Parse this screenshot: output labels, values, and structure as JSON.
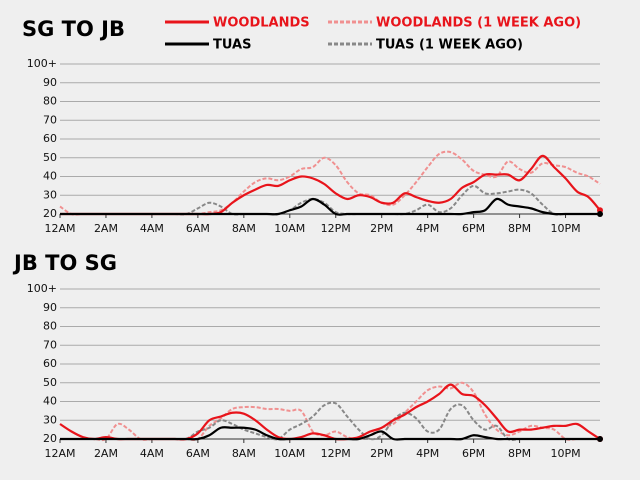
{
  "chart_data": [
    {
      "type": "line",
      "title": "SG TO JB",
      "x": [
        0,
        0.5,
        1,
        1.5,
        2,
        2.5,
        3,
        3.5,
        4,
        4.5,
        5,
        5.5,
        6,
        6.5,
        7,
        7.5,
        8,
        8.5,
        9,
        9.5,
        10,
        10.5,
        11,
        11.5,
        12,
        12.5,
        13,
        13.5,
        14,
        14.5,
        15,
        15.5,
        16,
        16.5,
        17,
        17.5,
        18,
        18.5,
        19,
        19.5,
        20,
        20.5,
        21,
        21.5,
        22,
        22.5,
        23,
        23.5
      ],
      "series": [
        {
          "name": "WOODLANDS",
          "color": "#e8141b",
          "dashed": false,
          "values": [
            20,
            20,
            20,
            20,
            20,
            20,
            20,
            20,
            20,
            20,
            20,
            20,
            20,
            20,
            21,
            26,
            30,
            33,
            35.5,
            35,
            38,
            40,
            39,
            36,
            31,
            28,
            30,
            29,
            26,
            26,
            31,
            29,
            27,
            26,
            28,
            34,
            37,
            41,
            41,
            41,
            38,
            44,
            51,
            45,
            39,
            32,
            29,
            22
          ]
        },
        {
          "name": "WOODLANDS (1 WEEK AGO)",
          "color": "#f09090",
          "dashed": true,
          "values": [
            24,
            20,
            20,
            20,
            20,
            20,
            20,
            20,
            20,
            20,
            20,
            20,
            20,
            21,
            22,
            26,
            32,
            37,
            39,
            38,
            40,
            44,
            45,
            50,
            46,
            37,
            31,
            30,
            26,
            25,
            30,
            37,
            45,
            52,
            53,
            49,
            43,
            41,
            40,
            48,
            44,
            42,
            47,
            46,
            45,
            42,
            40,
            36
          ]
        },
        {
          "name": "TUAS",
          "color": "#000000",
          "dashed": false,
          "values": [
            20,
            20,
            20,
            20,
            20,
            20,
            20,
            20,
            20,
            20,
            20,
            20,
            20,
            20,
            20,
            20,
            20,
            20,
            20,
            20,
            22,
            24,
            28,
            25,
            20,
            20,
            20,
            20,
            20,
            20,
            20,
            20,
            20,
            20,
            20,
            20,
            21,
            22,
            28,
            25,
            24,
            23,
            21,
            20,
            20,
            20,
            20,
            20
          ]
        },
        {
          "name": "TUAS (1 WEEK AGO)",
          "color": "#888888",
          "dashed": true,
          "values": [
            20,
            20,
            20,
            20,
            20,
            20,
            20,
            20,
            20,
            20,
            20,
            20,
            23,
            26,
            24,
            20,
            20,
            20,
            20,
            20,
            22,
            26,
            28,
            26,
            21,
            20,
            20,
            20,
            20,
            20,
            20,
            22,
            25,
            21,
            23,
            30,
            35,
            31,
            31,
            32,
            33,
            31,
            25,
            20,
            20,
            20,
            20,
            20
          ]
        }
      ],
      "xlim": [
        0,
        23.5
      ],
      "xticks": [
        {
          "value": 0,
          "label": "12AM"
        },
        {
          "value": 2,
          "label": "2AM"
        },
        {
          "value": 4,
          "label": "4AM"
        },
        {
          "value": 6,
          "label": "6AM"
        },
        {
          "value": 8,
          "label": "8AM"
        },
        {
          "value": 10,
          "label": "10AM"
        },
        {
          "value": 12,
          "label": "12PM"
        },
        {
          "value": 14,
          "label": "2PM"
        },
        {
          "value": 16,
          "label": "4PM"
        },
        {
          "value": 18,
          "label": "6PM"
        },
        {
          "value": 20,
          "label": "8PM"
        },
        {
          "value": 22,
          "label": "10PM"
        }
      ],
      "ylim": [
        20,
        100
      ],
      "yticks": [
        20,
        30,
        40,
        50,
        60,
        70,
        80,
        90,
        {
          "value": 100,
          "label": "100+"
        }
      ],
      "grid": true
    },
    {
      "type": "line",
      "title": "JB TO SG",
      "x": [
        0,
        0.5,
        1,
        1.5,
        2,
        2.5,
        3,
        3.5,
        4,
        4.5,
        5,
        5.5,
        6,
        6.5,
        7,
        7.5,
        8,
        8.5,
        9,
        9.5,
        10,
        10.5,
        11,
        11.5,
        12,
        12.5,
        13,
        13.5,
        14,
        14.5,
        15,
        15.5,
        16,
        16.5,
        17,
        17.5,
        18,
        18.5,
        19,
        19.5,
        20,
        20.5,
        21,
        21.5,
        22,
        22.5,
        23,
        23.5
      ],
      "series": [
        {
          "values": [
            28,
            24,
            21,
            20,
            21,
            20,
            20,
            20,
            20,
            20,
            20,
            20,
            23,
            30,
            32,
            34,
            33.5,
            30,
            25,
            21,
            20,
            21,
            23,
            22,
            20,
            20,
            21,
            24,
            26,
            30,
            33,
            37,
            40,
            44,
            49,
            44,
            43,
            38,
            31,
            24,
            25,
            25,
            26,
            27,
            27,
            28,
            24,
            20
          ]
        },
        {
          "values": [
            20,
            20,
            20,
            20,
            20,
            28,
            25,
            20,
            20,
            20,
            20,
            20,
            20,
            27,
            31,
            36,
            37,
            37,
            36,
            36,
            35,
            35,
            24,
            22,
            24,
            21,
            20,
            22,
            26,
            28,
            34,
            40,
            46,
            48,
            47,
            50,
            45,
            33,
            25,
            22,
            24,
            27,
            26,
            25,
            20,
            20,
            20,
            20
          ]
        },
        {
          "values": [
            20,
            20,
            20,
            20,
            20,
            20,
            20,
            20,
            20,
            20,
            20,
            20,
            20,
            22,
            26,
            26,
            26,
            25,
            22,
            20,
            20,
            20,
            20,
            20,
            20,
            20,
            20,
            22,
            24,
            20,
            20,
            20,
            20,
            20,
            20,
            20,
            22,
            21,
            20,
            20,
            20,
            20,
            20,
            20,
            20,
            20,
            20,
            20
          ]
        },
        {
          "values": [
            20,
            20,
            20,
            20,
            20,
            20,
            20,
            20,
            20,
            20,
            20,
            20,
            24,
            26,
            30,
            28,
            25,
            23,
            21,
            20,
            25,
            28,
            32,
            38,
            39,
            32,
            25,
            20,
            22,
            30,
            34,
            31,
            24,
            25,
            36,
            38,
            30,
            25,
            27,
            20,
            20,
            20,
            20,
            20,
            20,
            20,
            20,
            20
          ]
        }
      ],
      "xlim": [
        0,
        23.5
      ],
      "xticks": [
        {
          "value": 0,
          "label": "12AM"
        },
        {
          "value": 2,
          "label": "2AM"
        },
        {
          "value": 4,
          "label": "4AM"
        },
        {
          "value": 6,
          "label": "6AM"
        },
        {
          "value": 8,
          "label": "8AM"
        },
        {
          "value": 10,
          "label": "10AM"
        },
        {
          "value": 12,
          "label": "12PM"
        },
        {
          "value": 14,
          "label": "2PM"
        },
        {
          "value": 16,
          "label": "4PM"
        },
        {
          "value": 18,
          "label": "6PM"
        },
        {
          "value": 20,
          "label": "8PM"
        },
        {
          "value": 22,
          "label": "10PM"
        }
      ],
      "ylim": [
        20,
        100
      ],
      "yticks": [
        20,
        30,
        40,
        50,
        60,
        70,
        80,
        90,
        {
          "value": 100,
          "label": "100+"
        }
      ],
      "grid": true
    }
  ]
}
